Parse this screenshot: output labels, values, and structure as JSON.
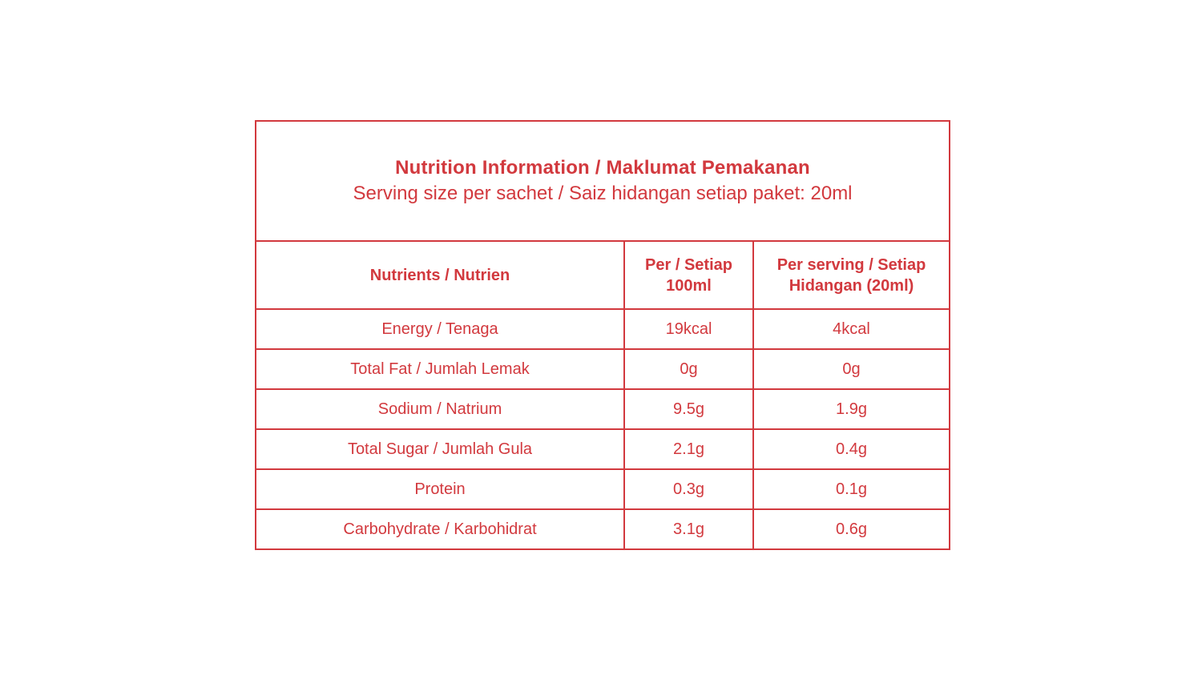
{
  "colors": {
    "accent": "#d2393e",
    "background": "#ffffff"
  },
  "nutrition_table": {
    "title": "Nutrition Information / Maklumat Pemakanan",
    "subtitle": "Serving size per sachet / Saiz hidangan setiap paket: 20ml",
    "columns": [
      "Nutrients / Nutrien",
      "Per / Setiap 100ml",
      "Per serving / Setiap Hidangan (20ml)"
    ],
    "rows": [
      {
        "nutrient": "Energy / Tenaga",
        "per_100ml": "19kcal",
        "per_serving": "4kcal"
      },
      {
        "nutrient": "Total Fat / Jumlah Lemak",
        "per_100ml": "0g",
        "per_serving": "0g"
      },
      {
        "nutrient": "Sodium / Natrium",
        "per_100ml": "9.5g",
        "per_serving": "1.9g"
      },
      {
        "nutrient": "Total Sugar / Jumlah Gula",
        "per_100ml": "2.1g",
        "per_serving": "0.4g"
      },
      {
        "nutrient": "Protein",
        "per_100ml": "0.3g",
        "per_serving": "0.1g"
      },
      {
        "nutrient": "Carbohydrate / Karbohidrat",
        "per_100ml": "3.1g",
        "per_serving": "0.6g"
      }
    ]
  }
}
